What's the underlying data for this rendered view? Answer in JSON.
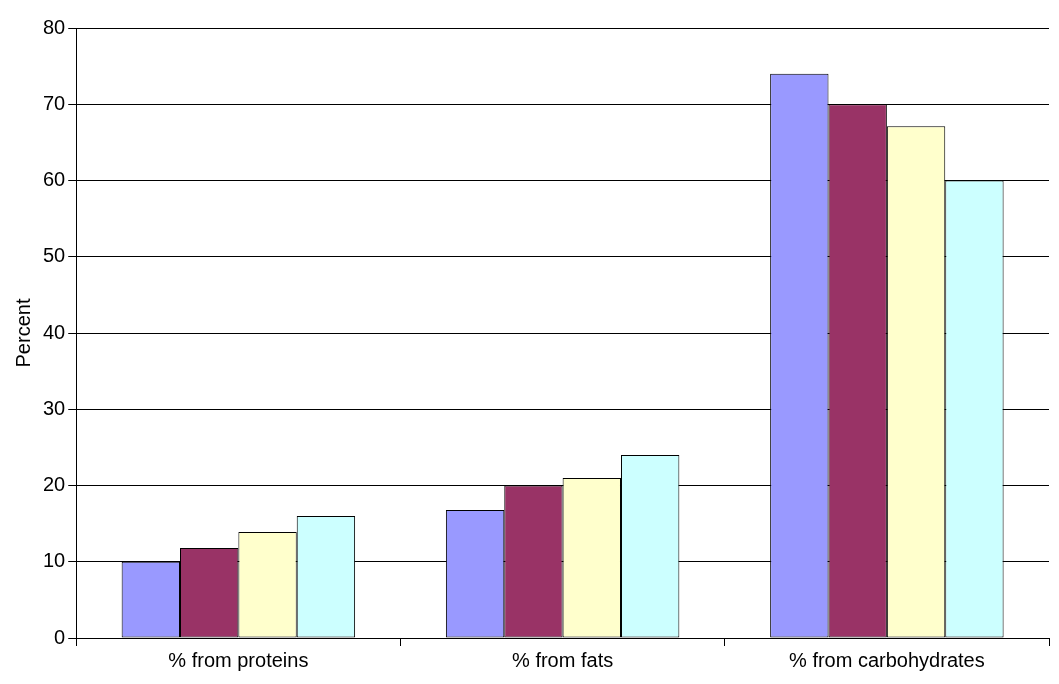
{
  "chart_data": {
    "type": "bar",
    "ylabel": "Percent",
    "categories": [
      "% from proteins",
      "% from fats",
      "% from carbohydrates"
    ],
    "series": [
      {
        "color": "#9999ff",
        "values": [
          10,
          16.8,
          74
        ]
      },
      {
        "color": "#993366",
        "values": [
          11.8,
          20,
          70
        ]
      },
      {
        "color": "#ffffcc",
        "values": [
          13.9,
          21,
          67.1
        ]
      },
      {
        "color": "#ccffff",
        "values": [
          16,
          24,
          60
        ]
      }
    ],
    "ylim": [
      0,
      80
    ],
    "yticks": [
      0,
      10,
      20,
      30,
      40,
      50,
      60,
      70,
      80
    ],
    "grid": "y",
    "legend": false
  }
}
